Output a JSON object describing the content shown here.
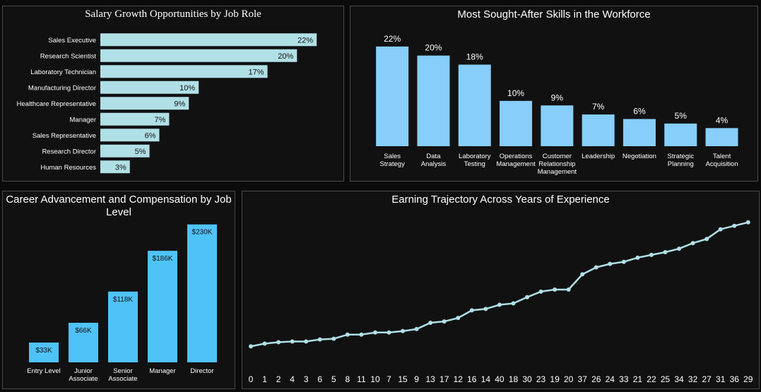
{
  "colors": {
    "background": "#0b0b0c",
    "panel": "#111112",
    "panel_border": "#4a4a4a",
    "hbar": "#b0e0e6",
    "skill_bar": "#87cefa",
    "level_bar": "#4fc3f7",
    "line": "#b0e0e6"
  },
  "chart_data": [
    {
      "type": "bar",
      "orientation": "horizontal",
      "title": "Salary Growth Opportunities by Job Role",
      "categories": [
        "Sales Executive",
        "Research Scientist",
        "Laboratory Technician",
        "Manufacturing Director",
        "Healthcare Representative",
        "Manager",
        "Sales Representative",
        "Research Director",
        "Human Resources"
      ],
      "values": [
        22,
        20,
        17,
        10,
        9,
        7,
        6,
        5,
        3
      ],
      "labels": [
        "22%",
        "20%",
        "17%",
        "10%",
        "9%",
        "7%",
        "6%",
        "5%",
        "3%"
      ],
      "xlim": [
        0,
        24
      ]
    },
    {
      "type": "bar",
      "title": "Most Sought-After Skills in the Workforce",
      "categories": [
        [
          "Sales",
          "Strategy"
        ],
        [
          "Data",
          "Analysis"
        ],
        [
          "Laboratory",
          "Testing"
        ],
        [
          "Operations",
          "Management"
        ],
        [
          "Customer",
          "Relationship",
          "Management"
        ],
        [
          "Leadership"
        ],
        [
          "Negotiation"
        ],
        [
          "Strategic",
          "Planning"
        ],
        [
          "Talent",
          "Acquisition"
        ]
      ],
      "values": [
        22,
        20,
        18,
        10,
        9,
        7,
        6,
        5,
        4
      ],
      "labels": [
        "22%",
        "20%",
        "18%",
        "10%",
        "9%",
        "7%",
        "6%",
        "5%",
        "4%"
      ],
      "ylim": [
        0,
        24
      ]
    },
    {
      "type": "bar",
      "title": [
        "Career Advancement and Compensation by Job",
        "Level"
      ],
      "categories": [
        [
          "Entry Level"
        ],
        [
          "Junior",
          "Associate"
        ],
        [
          "Senior",
          "Associate"
        ],
        [
          "Manager"
        ],
        [
          "Director"
        ]
      ],
      "values": [
        33,
        66,
        118,
        186,
        230
      ],
      "labels": [
        "$33K",
        "$66K",
        "$118K",
        "$186K",
        "$230K"
      ],
      "ylim": [
        0,
        245
      ]
    },
    {
      "type": "line",
      "title": "Earning Trajectory Across Years of Experience",
      "x": [
        "0",
        "1",
        "2",
        "4",
        "3",
        "6",
        "5",
        "8",
        "11",
        "10",
        "7",
        "15",
        "9",
        "13",
        "17",
        "12",
        "16",
        "14",
        "40",
        "18",
        "30",
        "23",
        "19",
        "20",
        "37",
        "26",
        "24",
        "33",
        "21",
        "22",
        "25",
        "34",
        "32",
        "27",
        "31",
        "36",
        "29"
      ],
      "values": [
        2.0,
        2.4,
        2.6,
        2.7,
        2.7,
        3.0,
        3.1,
        3.7,
        3.7,
        4.0,
        4.0,
        4.2,
        4.5,
        5.4,
        5.6,
        6.1,
        7.2,
        7.4,
        8.0,
        8.2,
        9.1,
        9.9,
        10.2,
        10.2,
        12.4,
        13.4,
        13.9,
        14.2,
        14.8,
        15.2,
        15.6,
        16.1,
        16.9,
        17.5,
        18.9,
        19.4,
        19.9
      ],
      "ylim": [
        0,
        21
      ]
    }
  ]
}
